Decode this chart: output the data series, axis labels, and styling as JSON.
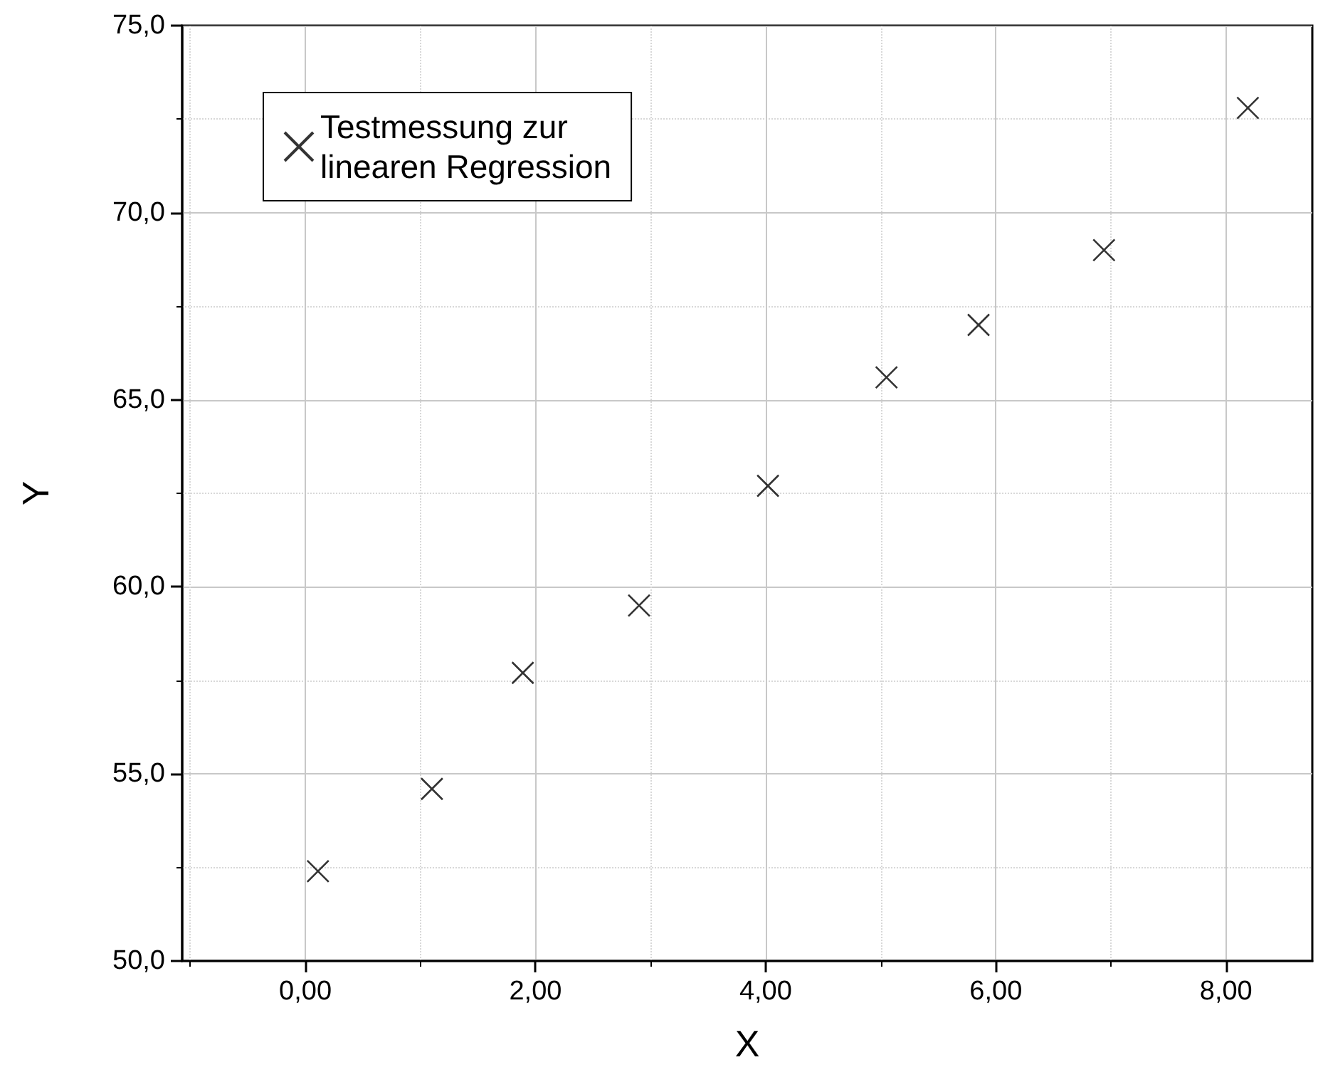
{
  "chart_data": {
    "type": "scatter",
    "xlabel": "X",
    "ylabel": "Y",
    "x": [
      0.11,
      1.1,
      1.89,
      2.9,
      4.02,
      5.05,
      5.85,
      6.94,
      8.19
    ],
    "series": [
      {
        "name": "Testmessung zur\nlinearen Regression",
        "color": "#000000",
        "values": [
          52.4,
          54.6,
          57.7,
          59.5,
          62.7,
          65.6,
          67.0,
          69.0,
          72.8
        ]
      }
    ],
    "xlim": [
      -1.07,
      8.75
    ],
    "xticks": [
      {
        "value": 0,
        "label": "0,00"
      },
      {
        "value": 2,
        "label": "2,00"
      },
      {
        "value": 4,
        "label": "4,00"
      },
      {
        "value": 6,
        "label": "6,00"
      },
      {
        "value": 8,
        "label": "8,00"
      }
    ],
    "ylim": [
      50,
      75
    ],
    "yticks": [
      {
        "value": 50,
        "label": "50,0"
      },
      {
        "value": 55,
        "label": "55,0"
      },
      {
        "value": 60,
        "label": "60,0"
      },
      {
        "value": 65,
        "label": "65,0"
      },
      {
        "value": 70,
        "label": "70,0"
      },
      {
        "value": 75,
        "label": "75,0"
      }
    ],
    "grid": true,
    "legend": "top left",
    "marker": "cross"
  }
}
